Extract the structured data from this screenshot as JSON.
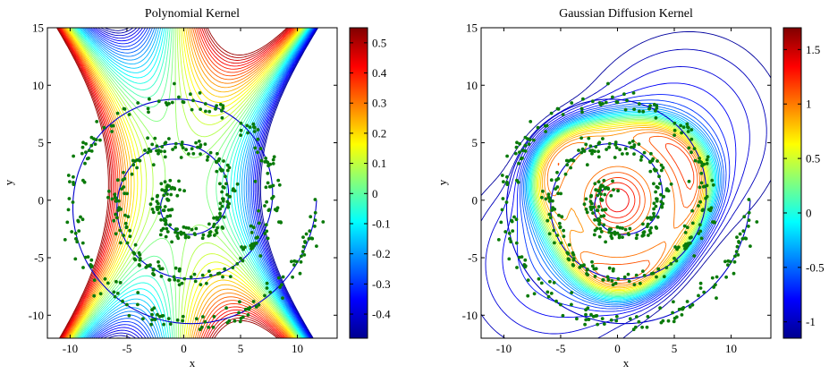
{
  "chart_data": [
    {
      "type": "contour",
      "title": "Polynomial Kernel",
      "xlabel": "x",
      "ylabel": "y",
      "xlim": [
        -12,
        13.5
      ],
      "ylim": [
        -12,
        15
      ],
      "xticks": [
        -10,
        -5,
        0,
        5,
        10
      ],
      "yticks": [
        -10,
        -5,
        0,
        5,
        10,
        15
      ],
      "colorbar": {
        "min": -0.48,
        "max": 0.55,
        "ticks": [
          -0.4,
          -0.3,
          -0.2,
          -0.1,
          0,
          0.1,
          0.2,
          0.3,
          0.4,
          0.5
        ],
        "labels": [
          "-0.4",
          "-0.3",
          "-0.2",
          "-0.1",
          "0",
          "0.1",
          "0.2",
          "0.3",
          "0.4",
          "0.5"
        ]
      },
      "series": [
        {
          "kind": "spiral-curve",
          "color": "#0000cc"
        },
        {
          "kind": "scatter",
          "color": "#0a7a0a"
        }
      ]
    },
    {
      "type": "contour",
      "title": "Gaussian Diffusion Kernel",
      "xlabel": "x",
      "ylabel": "y",
      "xlim": [
        -12,
        13.5
      ],
      "ylim": [
        -12,
        15
      ],
      "xticks": [
        -10,
        -5,
        0,
        5,
        10
      ],
      "yticks": [
        -10,
        -5,
        0,
        5,
        10,
        15
      ],
      "colorbar": {
        "min": -1.15,
        "max": 1.7,
        "ticks": [
          -1,
          -0.5,
          0,
          0.5,
          1,
          1.5
        ],
        "labels": [
          "-1",
          "-0.5",
          "0",
          "0.5",
          "1",
          "1.5"
        ]
      },
      "series": [
        {
          "kind": "spiral-curve",
          "color": "#0000cc"
        },
        {
          "kind": "scatter",
          "color": "#0a7a0a"
        }
      ]
    }
  ]
}
